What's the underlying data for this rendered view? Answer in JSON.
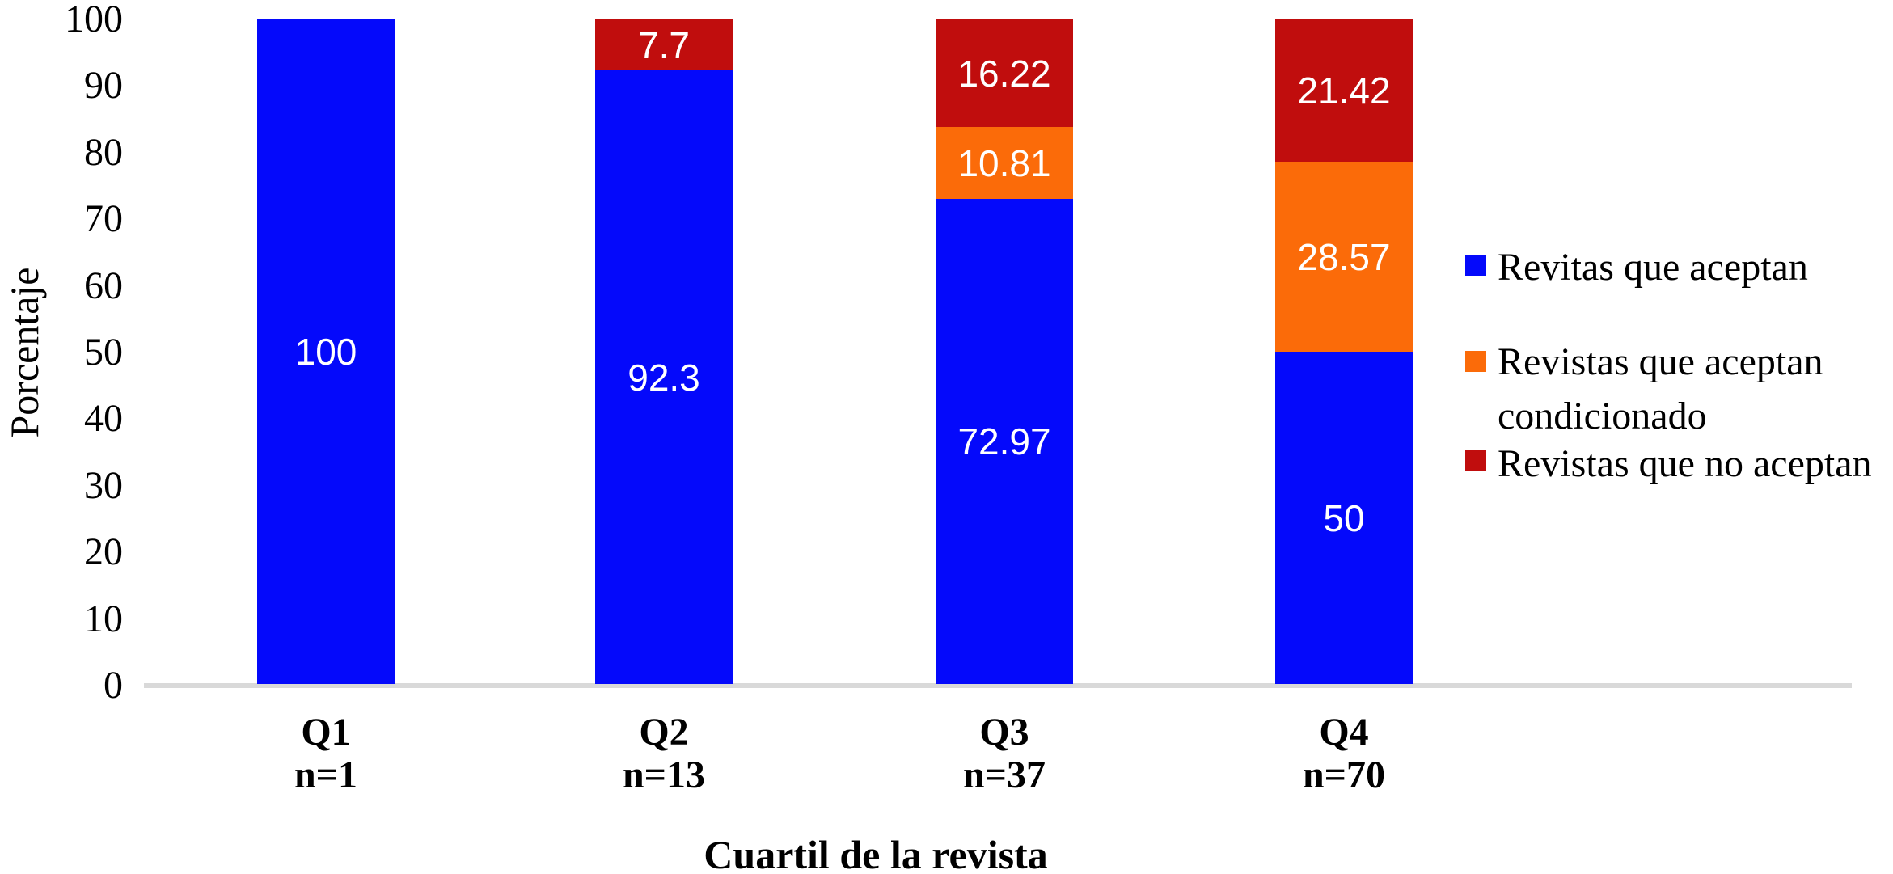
{
  "chart_data": {
    "type": "bar",
    "stacked": true,
    "title": "",
    "xlabel": "Cuartil de la revista",
    "ylabel": "Porcentaje",
    "ylim": [
      0,
      100
    ],
    "grid": false,
    "legend_position": "right",
    "yticks": [
      100,
      90,
      80,
      70,
      60,
      50,
      40,
      30,
      20,
      10,
      0
    ],
    "categories": [
      "Q1",
      "Q2",
      "Q3",
      "Q4"
    ],
    "category_counts": [
      "n=1",
      "n=13",
      "n=37",
      "n=70"
    ],
    "series": [
      {
        "name": "Revitas que aceptan",
        "color": "#0409FB",
        "values": [
          100,
          92.3,
          72.97,
          50
        ]
      },
      {
        "name": "Revistas que aceptan condicionado",
        "color": "#FB6B09",
        "values": [
          0,
          0,
          10.81,
          28.57
        ]
      },
      {
        "name": "Revistas que no aceptan",
        "color": "#C00D0D",
        "values": [
          0,
          7.7,
          16.22,
          21.42
        ]
      }
    ]
  },
  "legend": {
    "items": [
      {
        "label": "Revitas que aceptan"
      },
      {
        "label": "Revistas que aceptan",
        "label2": "condicionado"
      },
      {
        "label": "Revistas que no aceptan"
      }
    ]
  },
  "colors": {
    "axis_line": "#D9D9D9",
    "data_label": "#FFFFFF",
    "text": "#000000"
  }
}
